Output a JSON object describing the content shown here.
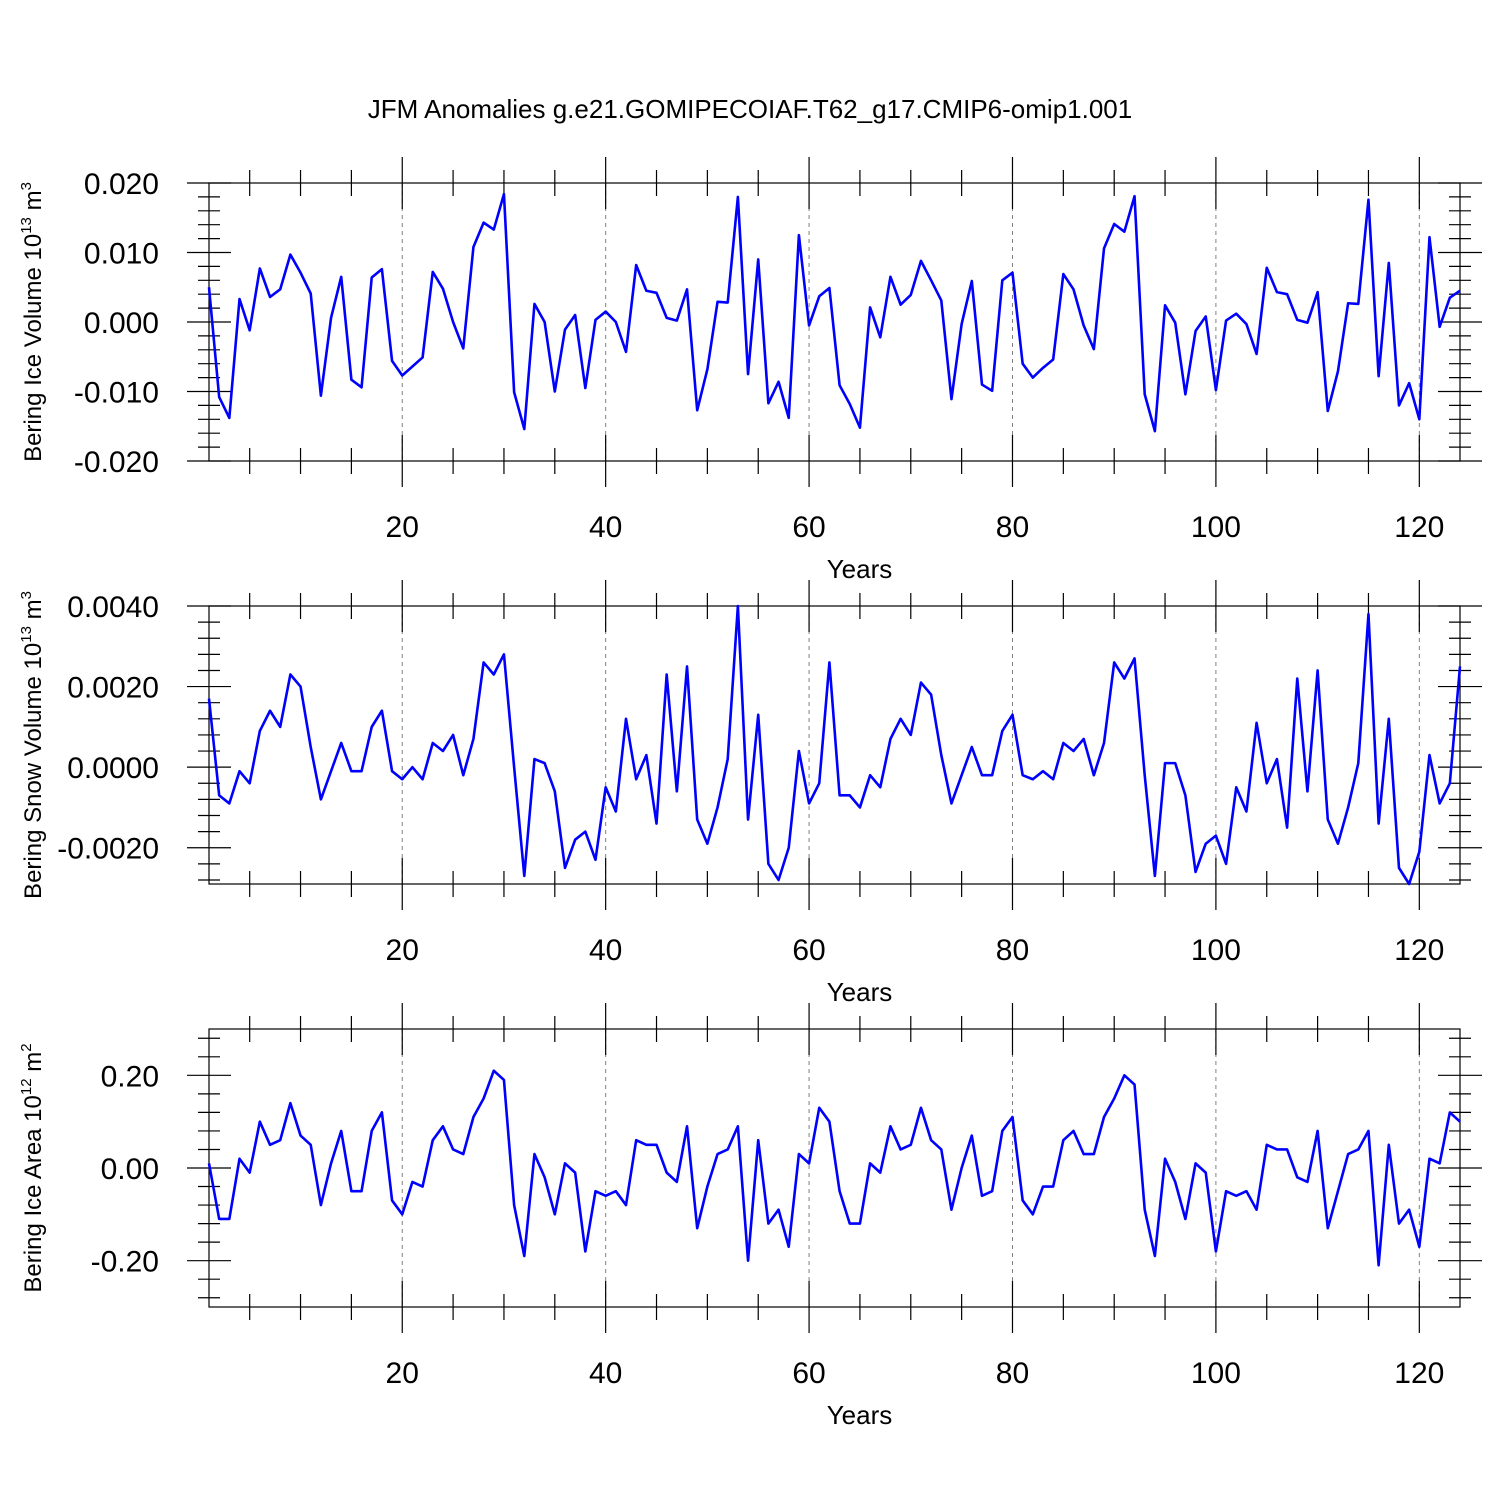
{
  "title": "JFM Anomalies g.e21.GOMIPECOIAF.T62_g17.CMIP6-omip1.001",
  "colors": {
    "line": "#0000ff",
    "grid": "#808080",
    "axis": "#000000"
  },
  "chart_data": [
    {
      "type": "line",
      "ylabel": {
        "text": "Bering Ice Volume 10",
        "sup": "13",
        "unit": " m",
        "unit_sup": "3"
      },
      "xlabel": "Years",
      "xlim": [
        1,
        124
      ],
      "ylim": [
        -0.02,
        0.02
      ],
      "xticks": [
        20,
        40,
        60,
        80,
        100,
        120
      ],
      "yticks": [
        -0.02,
        -0.01,
        0.0,
        0.01,
        0.02
      ],
      "ytick_labels": [
        "-0.020",
        "-0.010",
        "0.000",
        "0.010",
        "0.020"
      ],
      "grid_x": true,
      "x_start": 1,
      "values": [
        0.005,
        -0.0108,
        -0.0138,
        0.0033,
        -0.0012,
        0.0077,
        0.0036,
        0.0047,
        0.0097,
        0.0071,
        0.0041,
        -0.0106,
        0.0006,
        0.0065,
        -0.0083,
        -0.0094,
        0.0064,
        0.0076,
        -0.0056,
        -0.0077,
        -0.0064,
        -0.0051,
        0.0072,
        0.0048,
        0.0,
        -0.0038,
        0.0108,
        0.0143,
        0.0133,
        0.0184,
        -0.0101,
        -0.0154,
        0.0026,
        0.0,
        -0.01,
        -0.0011,
        0.001,
        -0.0095,
        0.0003,
        0.0015,
        0.0,
        -0.0043,
        0.0082,
        0.0045,
        0.0042,
        0.0006,
        0.0002,
        0.0047,
        -0.0127,
        -0.0068,
        0.0029,
        0.0028,
        0.018,
        -0.0075,
        0.009,
        -0.0117,
        -0.0086,
        -0.0138,
        0.0125,
        -0.0005,
        0.0037,
        0.0049,
        -0.0091,
        -0.0118,
        -0.0152,
        0.0021,
        -0.0022,
        0.0065,
        0.0025,
        0.0039,
        0.0088,
        0.006,
        0.0031,
        -0.0111,
        -0.0003,
        0.0059,
        -0.009,
        -0.0099,
        0.006,
        0.0071,
        -0.006,
        -0.008,
        -0.0066,
        -0.0054,
        0.0069,
        0.0047,
        -0.0005,
        -0.0039,
        0.0106,
        0.0141,
        0.013,
        0.0181,
        -0.0104,
        -0.0157,
        0.0024,
        -0.0001,
        -0.0104,
        -0.0013,
        0.0008,
        -0.0098,
        0.0002,
        0.0012,
        -0.0003,
        -0.0046,
        0.0078,
        0.0043,
        0.004,
        0.0003,
        -0.0001,
        0.0043,
        -0.0128,
        -0.0071,
        0.0027,
        0.0026,
        0.0176,
        -0.0078,
        0.0085,
        -0.012,
        -0.0088,
        -0.014,
        0.0122,
        -0.0007,
        0.0035,
        0.0045
      ]
    },
    {
      "type": "line",
      "ylabel": {
        "text": "Bering Snow Volume 10",
        "sup": "13",
        "unit": " m",
        "unit_sup": "3"
      },
      "xlabel": "Years",
      "xlim": [
        1,
        124
      ],
      "ylim": [
        -0.0029,
        0.004
      ],
      "xticks": [
        20,
        40,
        60,
        80,
        100,
        120
      ],
      "yticks": [
        -0.002,
        0.0,
        0.002,
        0.004
      ],
      "ytick_labels": [
        "-0.0020",
        "0.0000",
        "0.0020",
        "0.0040"
      ],
      "grid_x": true,
      "x_start": 1,
      "values": [
        0.0017,
        -0.0007,
        -0.0009,
        -0.0001,
        -0.0004,
        0.0009,
        0.0014,
        0.001,
        0.0023,
        0.002,
        0.0005,
        -0.0008,
        -0.0001,
        0.0006,
        -0.0001,
        -0.0001,
        0.001,
        0.0014,
        -0.0001,
        -0.0003,
        0.0,
        -0.0003,
        0.0006,
        0.0004,
        0.0008,
        -0.0002,
        0.0007,
        0.0026,
        0.0023,
        0.0028,
        0.0,
        -0.0027,
        0.0002,
        0.0001,
        -0.0006,
        -0.0025,
        -0.0018,
        -0.0016,
        -0.0023,
        -0.0005,
        -0.0011,
        0.0012,
        -0.0003,
        0.0003,
        -0.0014,
        0.0023,
        -0.0006,
        0.0025,
        -0.0013,
        -0.0019,
        -0.001,
        0.0002,
        0.004,
        -0.0013,
        0.0013,
        -0.0024,
        -0.0028,
        -0.002,
        0.0004,
        -0.0009,
        -0.0004,
        0.0026,
        -0.0007,
        -0.0007,
        -0.001,
        -0.0002,
        -0.0005,
        0.0007,
        0.0012,
        0.0008,
        0.0021,
        0.0018,
        0.0003,
        -0.0009,
        -0.0002,
        0.0005,
        -0.0002,
        -0.0002,
        0.0009,
        0.0013,
        -0.0002,
        -0.0003,
        -0.0001,
        -0.0003,
        0.0006,
        0.0004,
        0.0007,
        -0.0002,
        0.0006,
        0.0026,
        0.0022,
        0.0027,
        -0.0002,
        -0.0027,
        0.0001,
        0.0001,
        -0.0007,
        -0.0026,
        -0.0019,
        -0.0017,
        -0.0024,
        -0.0005,
        -0.0011,
        0.0011,
        -0.0004,
        0.0002,
        -0.0015,
        0.0022,
        -0.0006,
        0.0024,
        -0.0013,
        -0.0019,
        -0.001,
        0.0001,
        0.0038,
        -0.0014,
        0.0012,
        -0.0025,
        -0.0029,
        -0.0021,
        0.0003,
        -0.0009,
        -0.0004,
        0.0025
      ]
    },
    {
      "type": "line",
      "ylabel": {
        "text": "Bering Ice Area 10",
        "sup": "12",
        "unit": " m",
        "unit_sup": "2"
      },
      "xlabel": "Years",
      "xlim": [
        1,
        124
      ],
      "ylim": [
        -0.3,
        0.3
      ],
      "xticks": [
        20,
        40,
        60,
        80,
        100,
        120
      ],
      "yticks": [
        -0.2,
        0.0,
        0.2
      ],
      "ytick_labels": [
        "-0.20",
        "0.00",
        "0.20"
      ],
      "grid_x": true,
      "x_start": 1,
      "values": [
        0.01,
        -0.11,
        -0.11,
        0.02,
        -0.01,
        0.1,
        0.05,
        0.06,
        0.14,
        0.07,
        0.05,
        -0.08,
        0.01,
        0.08,
        -0.05,
        -0.05,
        0.08,
        0.12,
        -0.07,
        -0.1,
        -0.03,
        -0.04,
        0.06,
        0.09,
        0.04,
        0.03,
        0.11,
        0.15,
        0.21,
        0.19,
        -0.08,
        -0.19,
        0.03,
        -0.02,
        -0.1,
        0.01,
        -0.01,
        -0.18,
        -0.05,
        -0.06,
        -0.05,
        -0.08,
        0.06,
        0.05,
        0.05,
        -0.01,
        -0.03,
        0.09,
        -0.13,
        -0.04,
        0.03,
        0.04,
        0.09,
        -0.2,
        0.06,
        -0.12,
        -0.09,
        -0.17,
        0.03,
        0.01,
        0.13,
        0.1,
        -0.05,
        -0.12,
        -0.12,
        0.01,
        -0.01,
        0.09,
        0.04,
        0.05,
        0.13,
        0.06,
        0.04,
        -0.09,
        0.0,
        0.07,
        -0.06,
        -0.05,
        0.08,
        0.11,
        -0.07,
        -0.1,
        -0.04,
        -0.04,
        0.06,
        0.08,
        0.03,
        0.03,
        0.11,
        0.15,
        0.2,
        0.18,
        -0.09,
        -0.19,
        0.02,
        -0.03,
        -0.11,
        0.01,
        -0.01,
        -0.18,
        -0.05,
        -0.06,
        -0.05,
        -0.09,
        0.05,
        0.04,
        0.04,
        -0.02,
        -0.03,
        0.08,
        -0.13,
        -0.05,
        0.03,
        0.04,
        0.08,
        -0.21,
        0.05,
        -0.12,
        -0.09,
        -0.17,
        0.02,
        0.01,
        0.12,
        0.1
      ]
    }
  ]
}
